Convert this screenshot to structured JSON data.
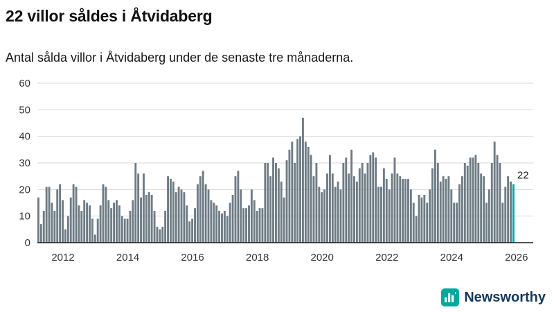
{
  "header": {
    "title": "22 villor såldes i Åtvidaberg",
    "subtitle": "Antal sålda villor i Åtvidaberg under de senaste tre månaderna."
  },
  "chart_data": {
    "type": "bar",
    "title": "22 villor såldes i Åtvidaberg",
    "subtitle": "Antal sålda villor i Åtvidaberg under de senaste tre månaderna.",
    "y_ticks": [
      0,
      10,
      20,
      30,
      40,
      50,
      60
    ],
    "ylim": [
      0,
      60
    ],
    "x_tick_labels": [
      "2012",
      "2014",
      "2016",
      "2018",
      "2020",
      "2022",
      "2024",
      "2026"
    ],
    "first_label_month_offset": 9,
    "grid": "horizontal",
    "values": [
      17,
      7,
      12,
      21,
      21,
      15,
      12,
      20,
      22,
      16,
      5,
      10,
      17,
      22,
      21,
      14,
      12,
      16,
      15,
      14,
      9,
      3,
      9,
      14,
      22,
      21,
      16,
      13,
      15,
      16,
      14,
      10,
      9,
      9,
      12,
      16,
      30,
      26,
      17,
      26,
      18,
      19,
      18,
      12,
      6,
      5,
      6,
      12,
      25,
      24,
      23,
      19,
      21,
      20,
      19,
      14,
      8,
      9,
      13,
      22,
      25,
      27,
      22,
      20,
      16,
      15,
      14,
      12,
      11,
      12,
      10,
      15,
      18,
      25,
      27,
      20,
      13,
      13,
      14,
      20,
      16,
      12,
      13,
      13,
      30,
      30,
      25,
      32,
      30,
      28,
      23,
      17,
      31,
      35,
      38,
      30,
      39,
      40,
      47,
      38,
      36,
      33,
      25,
      30,
      21,
      19,
      20,
      26,
      33,
      26,
      21,
      23,
      20,
      30,
      32,
      26,
      35,
      25,
      23,
      28,
      30,
      26,
      30,
      33,
      34,
      32,
      21,
      21,
      28,
      24,
      20,
      26,
      32,
      26,
      25,
      24,
      24,
      24,
      20,
      15,
      10,
      18,
      17,
      18,
      15,
      20,
      28,
      35,
      30,
      23,
      25,
      24,
      25,
      20,
      15,
      15,
      22,
      25,
      30,
      29,
      32,
      32,
      33,
      30,
      26,
      25,
      15,
      20,
      30,
      38,
      33,
      30,
      15,
      21,
      25,
      23,
      22
    ],
    "highlight_last": true,
    "annotation": {
      "text": "22"
    },
    "colors": {
      "bar": "#6e7c85",
      "highlight": "#00a99d",
      "grid": "#d9d9d9",
      "axis": "#1a1a1a"
    }
  },
  "footer": {
    "brand": "Newsworthy",
    "brand_color": "#16395f",
    "logo_color": "#00a99d"
  }
}
